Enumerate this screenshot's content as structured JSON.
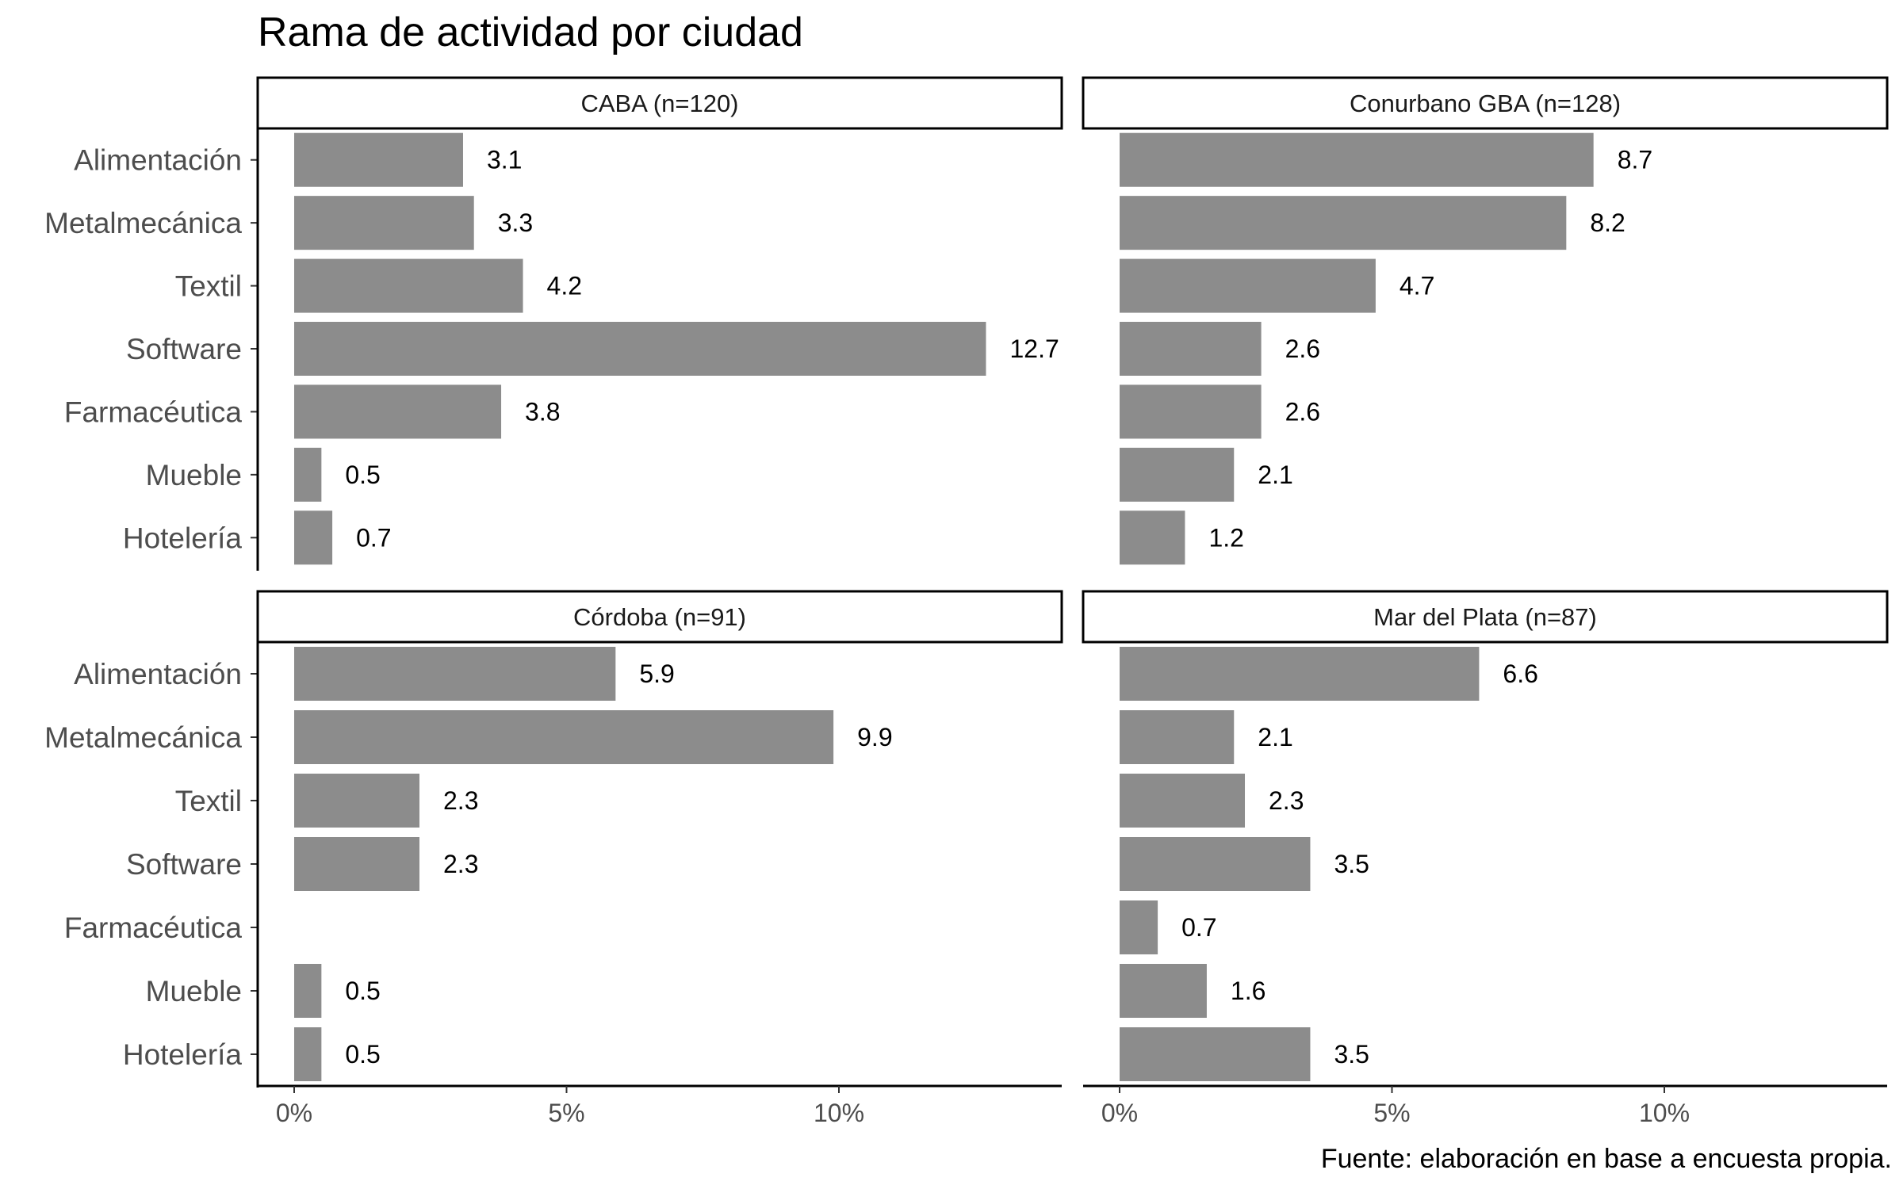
{
  "chart_data": {
    "type": "bar",
    "orientation": "horizontal",
    "title": "Rama de actividad por ciudad",
    "caption": "Fuente: elaboración en base a encuesta propia.",
    "categories": [
      "Alimentación",
      "Metalmecánica",
      "Textil",
      "Software",
      "Farmacéutica",
      "Mueble",
      "Hotelería"
    ],
    "xlim": [
      0,
      14
    ],
    "x_ticks": [
      {
        "value": 0,
        "label": "0%"
      },
      {
        "value": 5,
        "label": "5%"
      },
      {
        "value": 10,
        "label": "10%"
      }
    ],
    "bar_color": "#8c8c8c",
    "grid": false,
    "panels": [
      {
        "label": "CABA (n=120)",
        "values": [
          3.1,
          3.3,
          4.2,
          12.7,
          3.8,
          0.5,
          0.7
        ],
        "labels": [
          "3.1",
          "3.3",
          "4.2",
          "12.7",
          "3.8",
          "0.5",
          "0.7"
        ]
      },
      {
        "label": "Conurbano GBA (n=128)",
        "values": [
          8.7,
          8.2,
          4.7,
          2.6,
          2.6,
          2.1,
          1.2
        ],
        "labels": [
          "8.7",
          "8.2",
          "4.7",
          "2.6",
          "2.6",
          "2.1",
          "1.2"
        ]
      },
      {
        "label": "Córdoba (n=91)",
        "values": [
          5.9,
          9.9,
          2.3,
          2.3,
          null,
          0.5,
          0.5
        ],
        "labels": [
          "5.9",
          "9.9",
          "2.3",
          "2.3",
          "",
          "0.5",
          "0.5"
        ]
      },
      {
        "label": "Mar del Plata (n=87)",
        "values": [
          6.6,
          2.1,
          2.3,
          3.5,
          0.7,
          1.6,
          3.5
        ],
        "labels": [
          "6.6",
          "2.1",
          "2.3",
          "3.5",
          "0.7",
          "1.6",
          "3.5"
        ]
      }
    ]
  }
}
